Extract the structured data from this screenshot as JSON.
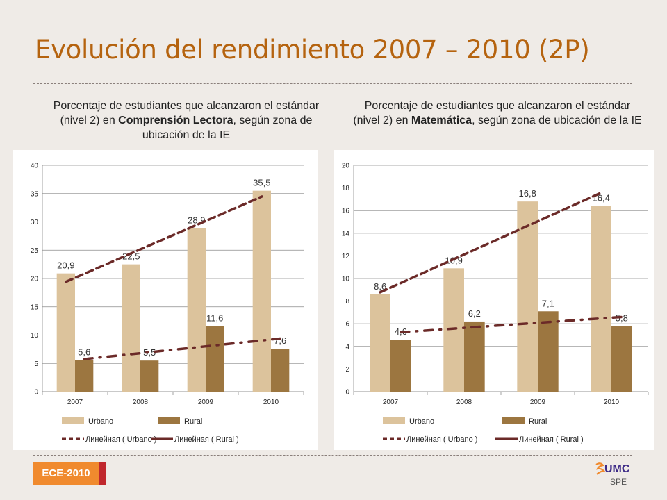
{
  "title": "Evolución del rendimiento 2007 – 2010 (2P)",
  "footer": {
    "badge": "ECE-2010",
    "logo_text": "SPE",
    "logo_mark": "UMC"
  },
  "colors": {
    "urbano": "#dcc39c",
    "rural": "#9c7640",
    "trend": "#6b2a28",
    "title": "#b5630f"
  },
  "chart_data": [
    {
      "type": "bar",
      "subtitle_pre": "Porcentaje de estudiantes que alcanzaron el estándar (nivel 2) en ",
      "subtitle_bold": "Comprensión Lectora",
      "subtitle_post": ", según zona de ubicación de la IE",
      "categories": [
        "2007",
        "2008",
        "2009",
        "2010"
      ],
      "series": [
        {
          "name": "Urbano",
          "values": [
            20.9,
            22.5,
            28.9,
            35.5
          ],
          "labels": [
            "20,9",
            "22,5",
            "28,9",
            "35,5"
          ]
        },
        {
          "name": "Rural",
          "values": [
            5.6,
            5.5,
            11.6,
            7.6
          ],
          "labels": [
            "5,6",
            "5,5",
            "11,6",
            "7,6"
          ]
        }
      ],
      "trendlines": [
        {
          "name": "Линейная ( Urbano )",
          "series": "Urbano",
          "style": "dashed"
        },
        {
          "name": "Линейная ( Rural )",
          "series": "Rural",
          "style": "dash-dot"
        }
      ],
      "ylim": [
        0,
        40
      ],
      "yticks": [
        0,
        5,
        10,
        15,
        20,
        25,
        30,
        35,
        40
      ],
      "grid": true,
      "legend": "bottom"
    },
    {
      "type": "bar",
      "subtitle_pre": "Porcentaje de estudiantes que alcanzaron el estándar (nivel 2) en ",
      "subtitle_bold": "Matemática",
      "subtitle_post": ", según zona de ubicación de la IE",
      "categories": [
        "2007",
        "2008",
        "2009",
        "2010"
      ],
      "series": [
        {
          "name": "Urbano",
          "values": [
            8.6,
            10.9,
            16.8,
            16.4
          ],
          "labels": [
            "8,6",
            "10,9",
            "16,8",
            "16,4"
          ]
        },
        {
          "name": "Rural",
          "values": [
            4.6,
            6.2,
            7.1,
            5.8
          ],
          "labels": [
            "4,6",
            "6,2",
            "7,1",
            "5,8"
          ]
        }
      ],
      "trendlines": [
        {
          "name": "Линейная ( Urbano )",
          "series": "Urbano",
          "style": "dashed"
        },
        {
          "name": "Линейная ( Rural )",
          "series": "Rural",
          "style": "dash-dot"
        }
      ],
      "ylim": [
        0,
        20
      ],
      "yticks": [
        0,
        2,
        4,
        6,
        8,
        10,
        12,
        14,
        16,
        18,
        20
      ],
      "grid": true,
      "legend": "bottom"
    }
  ]
}
